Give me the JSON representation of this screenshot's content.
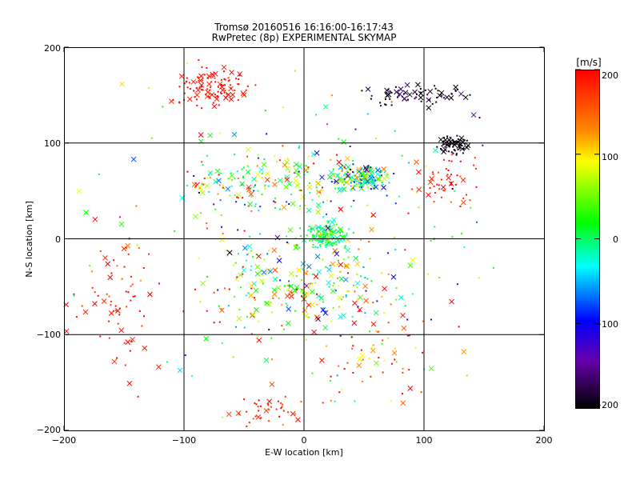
{
  "chart_data": {
    "type": "scatter",
    "title": "Tromsø 20160516 16:16:00-16:17:43",
    "subtitle": "RwPretec (8p) EXPERIMENTAL SKYMAP",
    "xlabel": "E-W location [km]",
    "ylabel": "N-S location [km]",
    "xlim": [
      -200,
      200
    ],
    "ylim": [
      -200,
      200
    ],
    "x_ticks": [
      -200,
      -100,
      0,
      100,
      200
    ],
    "y_ticks": [
      -200,
      -100,
      0,
      100,
      200
    ],
    "x_tick_labels": [
      "−200",
      "−100",
      "0",
      "100",
      "200"
    ],
    "y_tick_labels": [
      "−200",
      "−100",
      "0",
      "100",
      "200"
    ],
    "grid": true,
    "grid_lines": [
      -100,
      0,
      100
    ],
    "colorbar": {
      "label": "[m/s]",
      "range": [
        -200,
        200
      ],
      "ticks": [
        200,
        100,
        0,
        -100,
        -200
      ],
      "tick_labels": [
        "200",
        "100",
        "0",
        "−100",
        "−200"
      ],
      "colors": [
        "#ff0000",
        "#ffaa00",
        "#ffff00",
        "#00ff00",
        "#00ffff",
        "#0000ff",
        "#6600aa",
        "#000000"
      ]
    },
    "clusters": [
      {
        "x": -78,
        "y": 158,
        "sx": 20,
        "sy": 14,
        "n": 110,
        "v": 190,
        "vs": 15
      },
      {
        "x": 48,
        "y": 65,
        "sx": 16,
        "sy": 9,
        "n": 170,
        "v": 0,
        "vs": 110
      },
      {
        "x": 18,
        "y": 3,
        "sx": 13,
        "sy": 10,
        "n": 140,
        "v": 10,
        "vs": 50
      },
      {
        "x": 125,
        "y": 98,
        "sx": 9,
        "sy": 6,
        "n": 70,
        "v": -195,
        "vs": 10
      },
      {
        "x": 95,
        "y": 150,
        "sx": 28,
        "sy": 9,
        "n": 70,
        "v": -185,
        "vs": 25
      },
      {
        "x": 0,
        "y": -50,
        "sx": 55,
        "sy": 40,
        "n": 220,
        "v": 60,
        "vs": 130
      },
      {
        "x": -20,
        "y": 60,
        "sx": 55,
        "sy": 25,
        "n": 170,
        "v": 40,
        "vs": 130
      },
      {
        "x": -150,
        "y": -60,
        "sx": 25,
        "sy": 60,
        "n": 70,
        "v": 185,
        "vs": 40
      },
      {
        "x": -30,
        "y": -175,
        "sx": 20,
        "sy": 15,
        "n": 40,
        "v": 185,
        "vs": 30
      },
      {
        "x": 115,
        "y": 60,
        "sx": 25,
        "sy": 20,
        "n": 50,
        "v": 185,
        "vs": 25
      },
      {
        "x": 0,
        "y": 0,
        "sx": 120,
        "sy": 120,
        "n": 220,
        "v": 40,
        "vs": 150
      },
      {
        "x": 60,
        "y": -120,
        "sx": 40,
        "sy": 40,
        "n": 50,
        "v": 160,
        "vs": 80
      }
    ]
  }
}
